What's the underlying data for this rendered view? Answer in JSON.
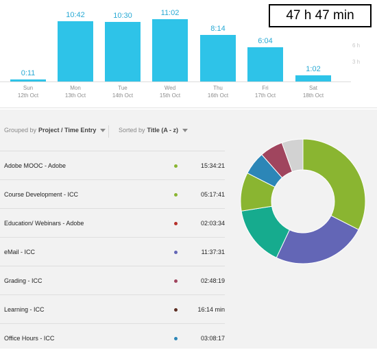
{
  "total": "47 h 47 min",
  "hour_ticks": [
    "6 h",
    "3 h"
  ],
  "days": [
    {
      "day": "Sun",
      "date": "12th Oct",
      "label": "0:11",
      "hours": 0.183
    },
    {
      "day": "Mon",
      "date": "13th Oct",
      "label": "10:42",
      "hours": 10.7
    },
    {
      "day": "Tue",
      "date": "14th Oct",
      "label": "10:30",
      "hours": 10.5
    },
    {
      "day": "Wed",
      "date": "15th Oct",
      "label": "11:02",
      "hours": 11.033
    },
    {
      "day": "Thu",
      "date": "16th Oct",
      "label": "8:14",
      "hours": 8.233
    },
    {
      "day": "Fri",
      "date": "17th Oct",
      "label": "6:04",
      "hours": 6.067
    },
    {
      "day": "Sat",
      "date": "18th Oct",
      "label": "1:02",
      "hours": 1.033
    }
  ],
  "grouping": {
    "prefix": "Grouped by",
    "value": "Project / Time Entry"
  },
  "sorting": {
    "prefix": "Sorted by",
    "value": "Title (A - z)"
  },
  "entries": [
    {
      "title": "Adobe MOOC - Adobe",
      "color": "#8ab531",
      "duration": "15:34:21",
      "minutes": 934.35
    },
    {
      "title": "Course Development - ICC",
      "color": "#8ab531",
      "duration": "05:17:41",
      "minutes": 317.68
    },
    {
      "title": "Education/ Webinars - Adobe",
      "color": "#b5312b",
      "duration": "02:03:34",
      "minutes": 123.57
    },
    {
      "title": "eMail - ICC",
      "color": "#6366b6",
      "duration": "11:37:31",
      "minutes": 697.52
    },
    {
      "title": "Grading - ICC",
      "color": "#a0455e",
      "duration": "02:48:19",
      "minutes": 168.32
    },
    {
      "title": "Learning - ICC",
      "color": "#5c2d22",
      "duration": "16:14 min",
      "minutes": 16.23
    },
    {
      "title": "Office Hours - ICC",
      "color": "#2c86b7",
      "duration": "03:08:17",
      "minutes": 188.28
    }
  ],
  "donut": {
    "segments": [
      {
        "color": "#8ab531",
        "fraction": 0.325
      },
      {
        "color": "#6366b6",
        "fraction": 0.245
      },
      {
        "color": "#16ab8e",
        "fraction": 0.155
      },
      {
        "color": "#8ab531",
        "fraction": 0.1
      },
      {
        "color": "#2c86b7",
        "fraction": 0.06
      },
      {
        "color": "#a0455e",
        "fraction": 0.06
      },
      {
        "color": "#d2d2d2",
        "fraction": 0.055
      }
    ]
  }
}
